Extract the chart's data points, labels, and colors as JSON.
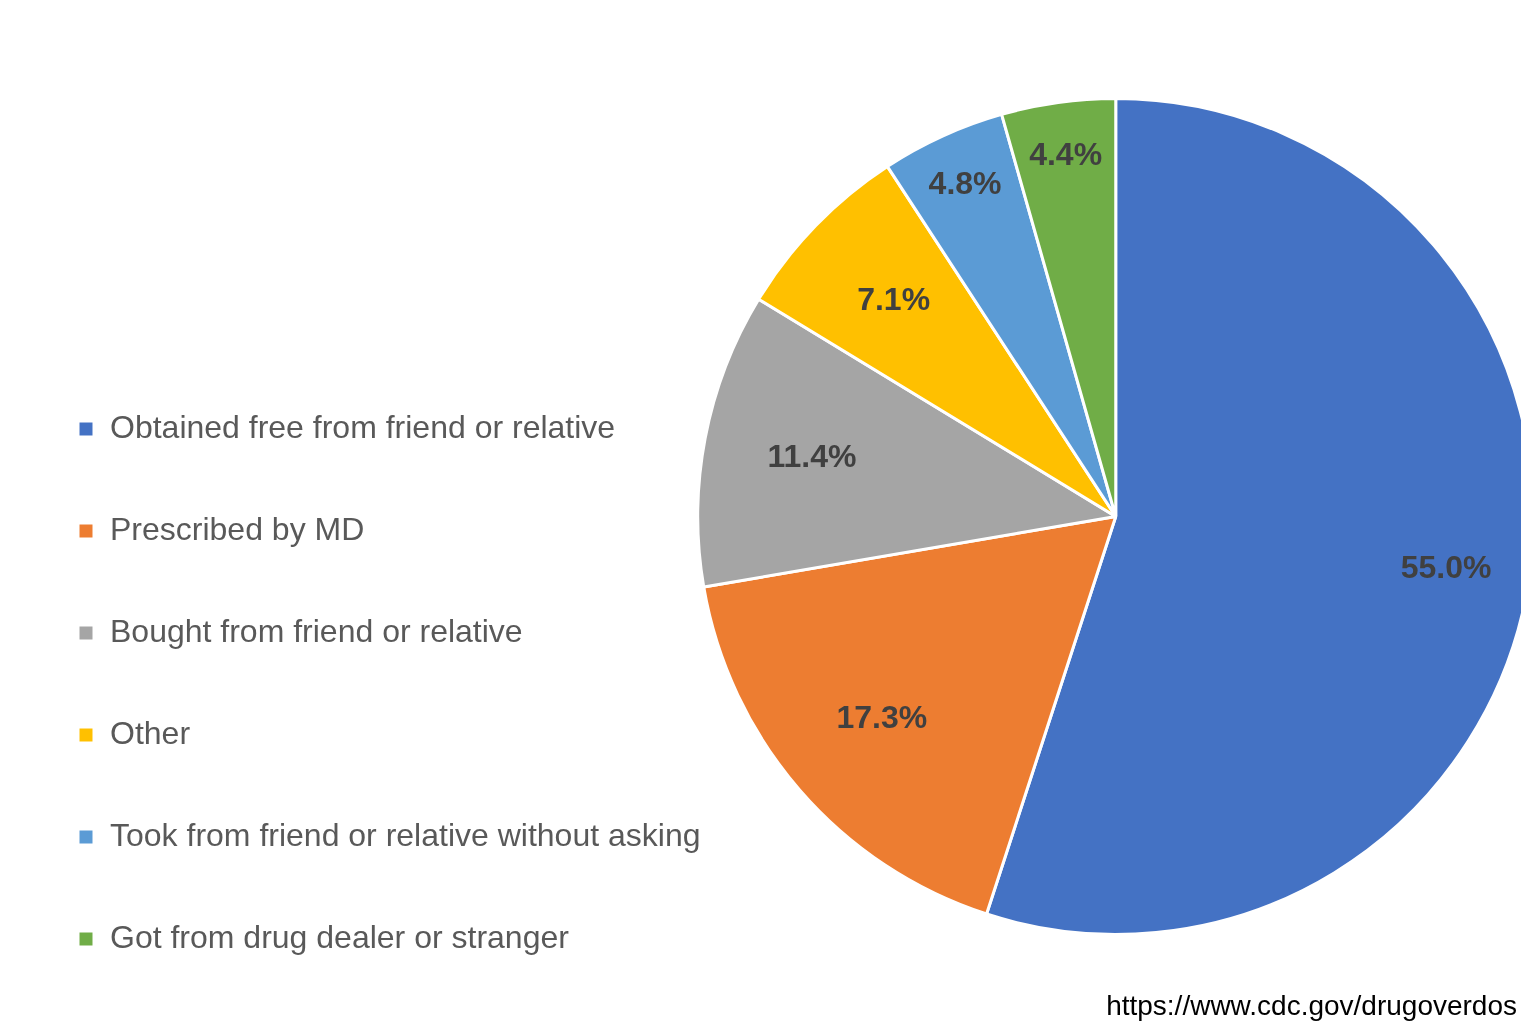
{
  "chart_data": {
    "type": "pie",
    "categories": [
      "Obtained free from friend or relative",
      "Prescribed by MD",
      "Bought from friend or relative",
      "Other",
      "Took from friend or relative without asking",
      "Got from drug dealer or stranger"
    ],
    "values": [
      55.0,
      17.3,
      11.4,
      7.1,
      4.8,
      4.4
    ],
    "value_labels": [
      "55.0%",
      "17.3%",
      "11.4%",
      "7.1%",
      "4.8%",
      "4.4%"
    ],
    "colors": [
      "#4472c4",
      "#ed7d31",
      "#a5a5a5",
      "#ffc000",
      "#5b9bd5",
      "#70ad47"
    ],
    "legend": "left",
    "annotations": [
      "https://www.cdc.gov/drugoverdos"
    ]
  }
}
